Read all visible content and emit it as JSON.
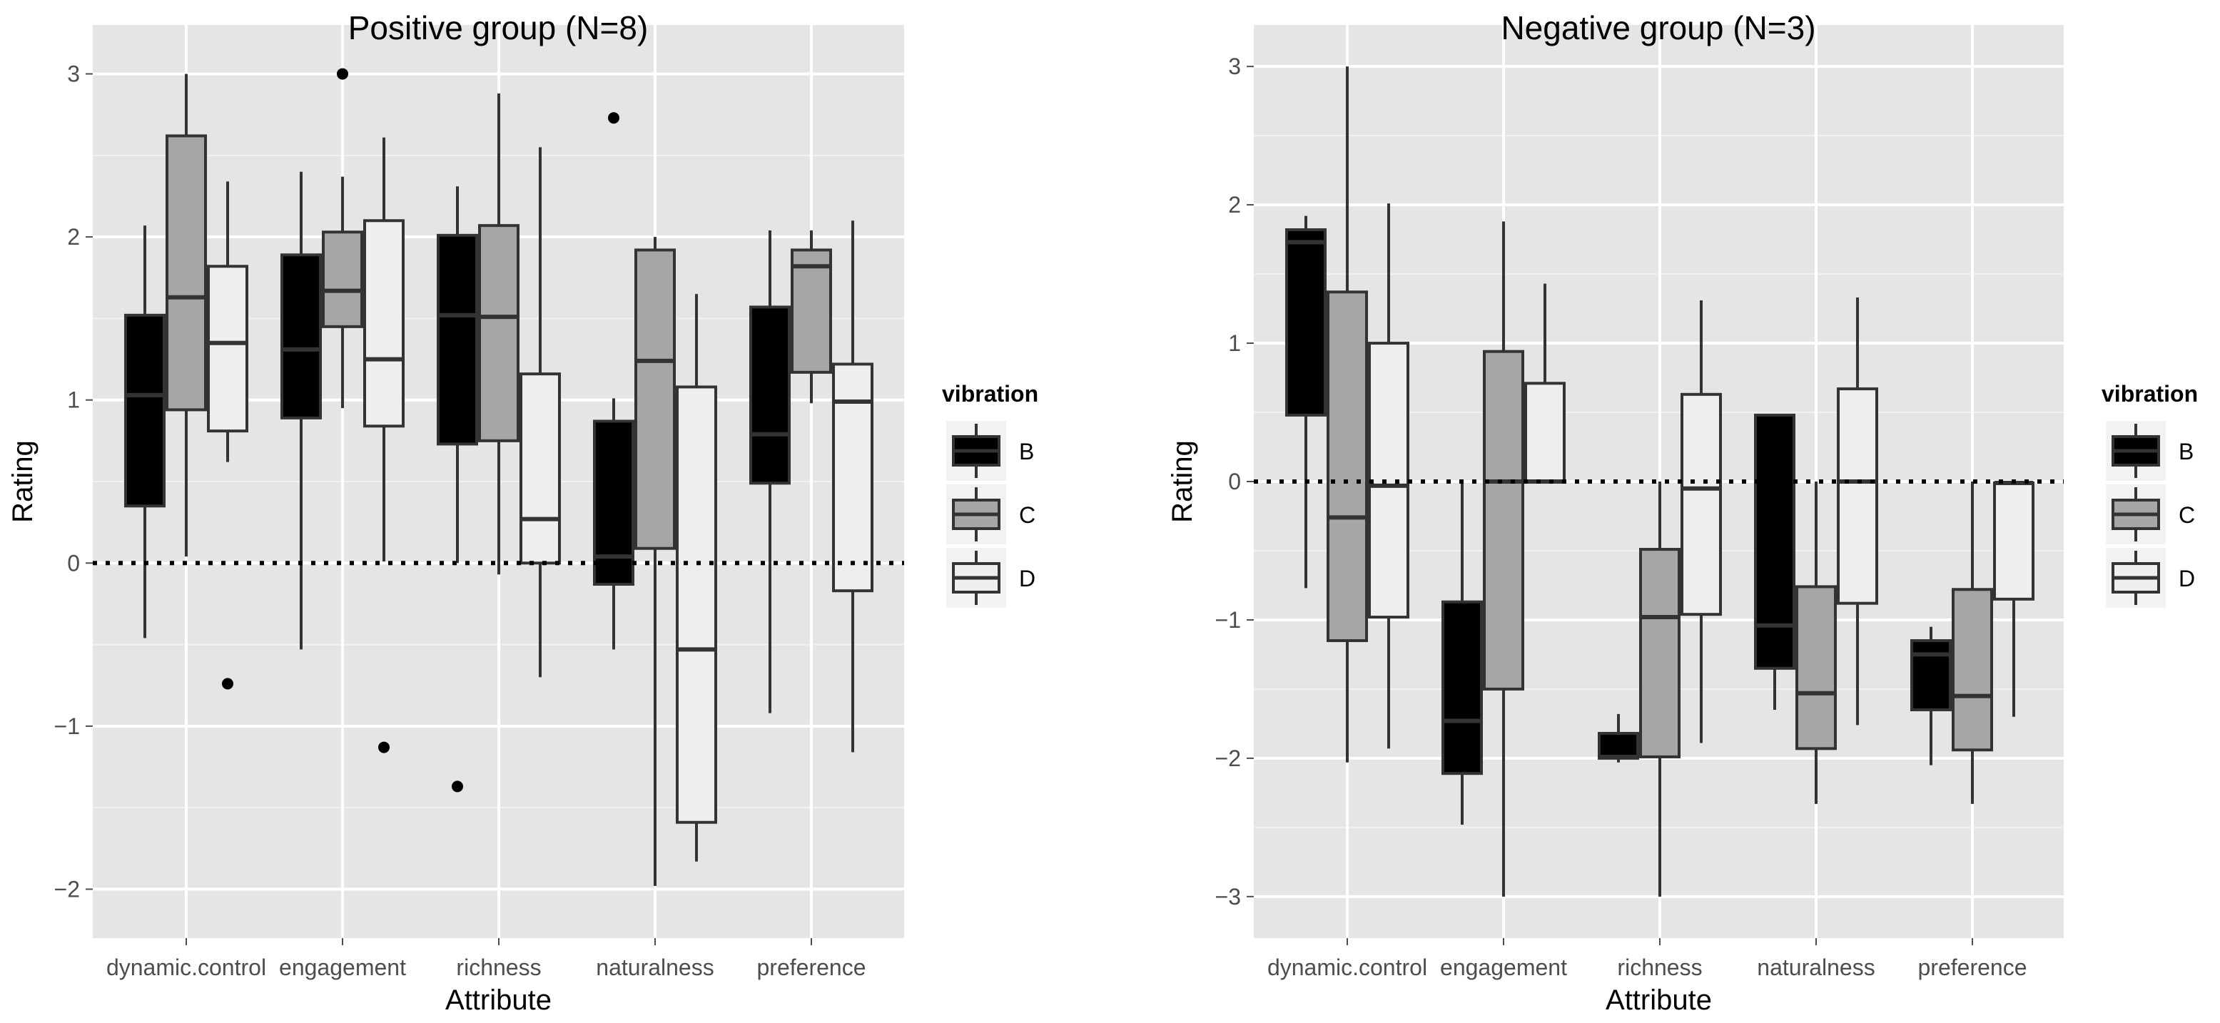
{
  "chart_data": [
    {
      "type": "boxplot",
      "title": "Positive group (N=8)",
      "xlabel": "Attribute",
      "ylabel": "Rating",
      "ylim": [
        -2.3,
        3.3
      ],
      "yticks": [
        -2,
        -1,
        0,
        1,
        2,
        3
      ],
      "reference_line": 0,
      "categories": [
        "dynamic.control",
        "engagement",
        "richness",
        "naturalness",
        "preference"
      ],
      "legend": {
        "title": "vibration",
        "entries": [
          "B",
          "C",
          "D"
        ],
        "colors": [
          "#000000",
          "#a6a6a6",
          "#eeeeee"
        ]
      },
      "series": [
        {
          "name": "B",
          "boxes": [
            {
              "whisker_low": -0.46,
              "q1": 0.35,
              "median": 1.03,
              "q3": 1.52,
              "whisker_high": 2.07,
              "outliers": []
            },
            {
              "whisker_low": -0.53,
              "q1": 0.89,
              "median": 1.31,
              "q3": 1.89,
              "whisker_high": 2.4,
              "outliers": []
            },
            {
              "whisker_low": 0,
              "q1": 0.73,
              "median": 1.52,
              "q3": 2.01,
              "whisker_high": 2.31,
              "outliers": [
                -1.37
              ]
            },
            {
              "whisker_low": -0.53,
              "q1": -0.13,
              "median": 0.04,
              "q3": 0.87,
              "whisker_high": 1.01,
              "outliers": [
                2.73
              ]
            },
            {
              "whisker_low": -0.92,
              "q1": 0.49,
              "median": 0.79,
              "q3": 1.57,
              "whisker_high": 2.04,
              "outliers": []
            }
          ]
        },
        {
          "name": "C",
          "boxes": [
            {
              "whisker_low": 0.04,
              "q1": 0.94,
              "median": 1.63,
              "q3": 2.62,
              "whisker_high": 3.0,
              "outliers": []
            },
            {
              "whisker_low": 0.95,
              "q1": 1.45,
              "median": 1.67,
              "q3": 2.03,
              "whisker_high": 2.37,
              "outliers": [
                3.0
              ]
            },
            {
              "whisker_low": -0.07,
              "q1": 0.75,
              "median": 1.51,
              "q3": 2.07,
              "whisker_high": 2.88,
              "outliers": []
            },
            {
              "whisker_low": -1.98,
              "q1": 0.09,
              "median": 1.24,
              "q3": 1.92,
              "whisker_high": 2.0,
              "outliers": []
            },
            {
              "whisker_low": 0.98,
              "q1": 1.17,
              "median": 1.82,
              "q3": 1.92,
              "whisker_high": 2.04,
              "outliers": []
            }
          ]
        },
        {
          "name": "D",
          "boxes": [
            {
              "whisker_low": 0.62,
              "q1": 0.81,
              "median": 1.35,
              "q3": 1.82,
              "whisker_high": 2.34,
              "outliers": [
                -0.74
              ]
            },
            {
              "whisker_low": 0.01,
              "q1": 0.84,
              "median": 1.25,
              "q3": 2.1,
              "whisker_high": 2.61,
              "outliers": [
                -1.13
              ]
            },
            {
              "whisker_low": -0.7,
              "q1": 0.0,
              "median": 0.27,
              "q3": 1.16,
              "whisker_high": 2.55,
              "outliers": []
            },
            {
              "whisker_low": -1.83,
              "q1": -1.59,
              "median": -0.53,
              "q3": 1.08,
              "whisker_high": 1.65,
              "outliers": []
            },
            {
              "whisker_low": -1.16,
              "q1": -0.17,
              "median": 0.99,
              "q3": 1.22,
              "whisker_high": 2.1,
              "outliers": []
            }
          ]
        }
      ]
    },
    {
      "type": "boxplot",
      "title": "Negative group (N=3)",
      "xlabel": "Attribute",
      "ylabel": "Rating",
      "ylim": [
        -3.3,
        3.3
      ],
      "yticks": [
        -3,
        -2,
        -1,
        0,
        1,
        2,
        3
      ],
      "reference_line": 0,
      "categories": [
        "dynamic.control",
        "engagement",
        "richness",
        "naturalness",
        "preference"
      ],
      "legend": {
        "title": "vibration",
        "entries": [
          "B",
          "C",
          "D"
        ],
        "colors": [
          "#000000",
          "#a6a6a6",
          "#eeeeee"
        ]
      },
      "series": [
        {
          "name": "B",
          "boxes": [
            {
              "whisker_low": -0.77,
              "q1": 0.48,
              "median": 1.73,
              "q3": 1.82,
              "whisker_high": 1.92,
              "outliers": []
            },
            {
              "whisker_low": -2.48,
              "q1": -2.11,
              "median": -1.73,
              "q3": -0.87,
              "whisker_high": 0.0,
              "outliers": []
            },
            {
              "whisker_low": -2.03,
              "q1": -2.0,
              "median": -1.99,
              "q3": -1.82,
              "whisker_high": -1.68,
              "outliers": []
            },
            {
              "whisker_low": -1.65,
              "q1": -1.35,
              "median": -1.04,
              "q3": 0.48,
              "whisker_high": 0.48,
              "outliers": []
            },
            {
              "whisker_low": -2.05,
              "q1": -1.65,
              "median": -1.25,
              "q3": -1.15,
              "whisker_high": -1.05,
              "outliers": []
            }
          ]
        },
        {
          "name": "C",
          "boxes": [
            {
              "whisker_low": -2.03,
              "q1": -1.15,
              "median": -0.26,
              "q3": 1.37,
              "whisker_high": 3.0,
              "outliers": []
            },
            {
              "whisker_low": -3.0,
              "q1": -1.5,
              "median": 0.0,
              "q3": 0.94,
              "whisker_high": 1.88,
              "outliers": []
            },
            {
              "whisker_low": -3.0,
              "q1": -1.99,
              "median": -0.98,
              "q3": -0.49,
              "whisker_high": 0.0,
              "outliers": []
            },
            {
              "whisker_low": -2.33,
              "q1": -1.93,
              "median": -1.53,
              "q3": -0.76,
              "whisker_high": 0.0,
              "outliers": []
            },
            {
              "whisker_low": -2.33,
              "q1": -1.94,
              "median": -1.55,
              "q3": -0.78,
              "whisker_high": 0.0,
              "outliers": []
            }
          ]
        },
        {
          "name": "D",
          "boxes": [
            {
              "whisker_low": -1.93,
              "q1": -0.98,
              "median": -0.03,
              "q3": 1.0,
              "whisker_high": 2.01,
              "outliers": []
            },
            {
              "whisker_low": 0.0,
              "q1": 0.0,
              "median": 0.0,
              "q3": 0.71,
              "whisker_high": 1.43,
              "outliers": []
            },
            {
              "whisker_low": -1.89,
              "q1": -0.96,
              "median": -0.05,
              "q3": 0.63,
              "whisker_high": 1.31,
              "outliers": []
            },
            {
              "whisker_low": -1.76,
              "q1": -0.88,
              "median": 0.0,
              "q3": 0.67,
              "whisker_high": 1.33,
              "outliers": []
            },
            {
              "whisker_low": -1.7,
              "q1": -0.85,
              "median": -0.01,
              "q3": -0.01,
              "whisker_high": 0.0,
              "outliers": []
            }
          ]
        }
      ]
    }
  ]
}
